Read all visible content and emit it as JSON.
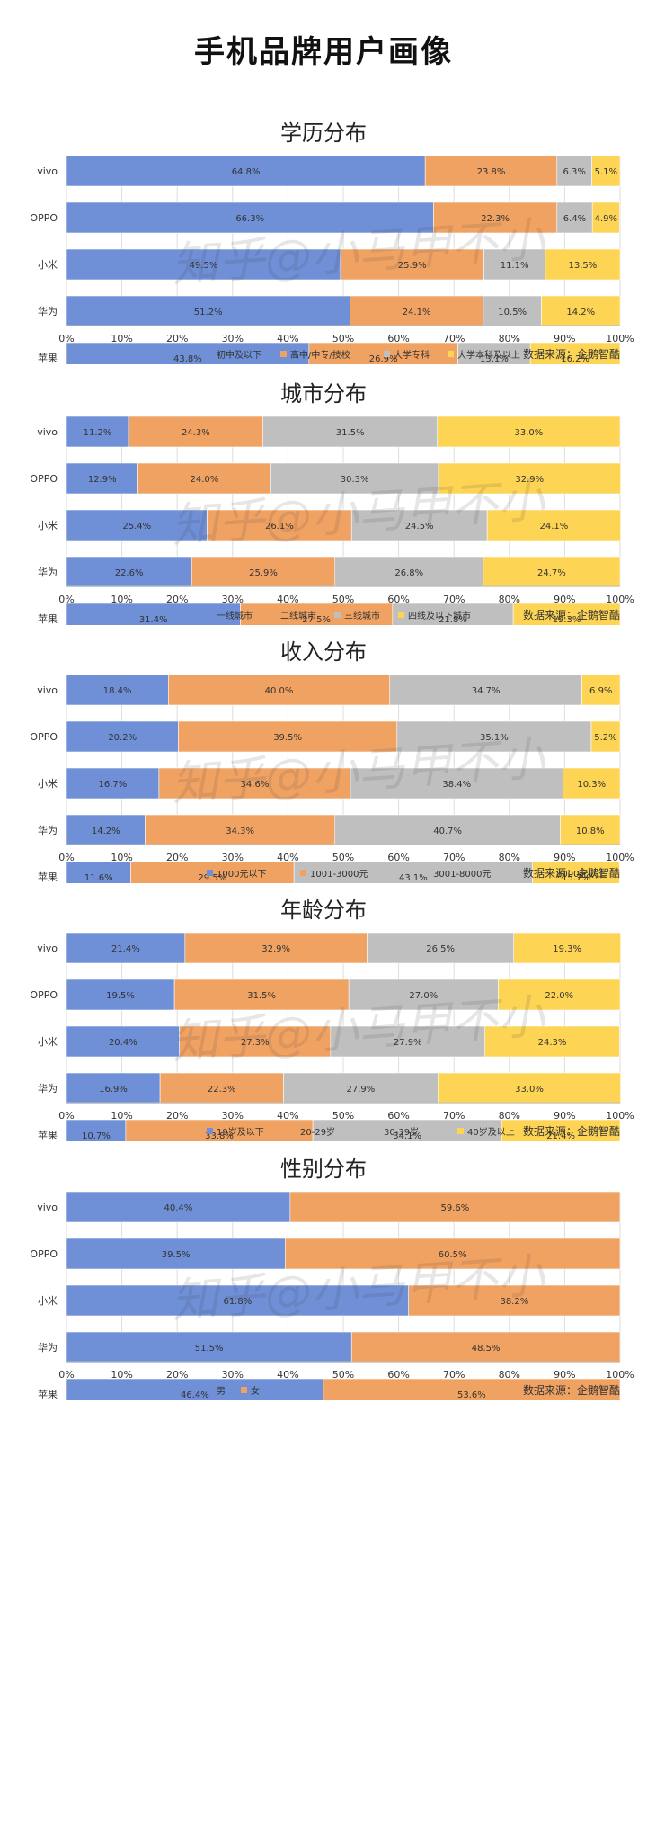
{
  "page": {
    "title": "手机品牌用户画像",
    "watermark": "知乎@小马甲不小"
  },
  "colors": {
    "blue": "#6f8fd6",
    "orange": "#f0a262",
    "gray": "#bfbfbf",
    "yellow": "#fdd454"
  },
  "chart_data": [
    {
      "type": "bar",
      "orientation": "horizontal",
      "stacked": true,
      "title": "学历分布",
      "categories": [
        "vivo",
        "OPPO",
        "小米",
        "华为",
        "苹果"
      ],
      "series": [
        {
          "name": "初中及以下",
          "color": "#6f8fd6",
          "values": [
            64.8,
            66.3,
            49.5,
            51.2,
            43.8
          ]
        },
        {
          "name": "高中/中专/技校",
          "color": "#f0a262",
          "values": [
            23.8,
            22.3,
            25.9,
            24.1,
            26.9
          ]
        },
        {
          "name": "大学专科",
          "color": "#bfbfbf",
          "values": [
            6.3,
            6.4,
            11.1,
            10.5,
            13.1
          ]
        },
        {
          "name": "大学本科及以上",
          "color": "#fdd454",
          "values": [
            5.1,
            4.9,
            13.5,
            14.2,
            16.2
          ]
        }
      ],
      "xlim": [
        0,
        100
      ],
      "xticks": [
        "0%",
        "10%",
        "20%",
        "30%",
        "40%",
        "50%",
        "60%",
        "70%",
        "80%",
        "90%",
        "100%"
      ],
      "source": "数据来源：企鹅智酷",
      "legend_position": "bottom",
      "grid": true
    },
    {
      "type": "bar",
      "orientation": "horizontal",
      "stacked": true,
      "title": "城市分布",
      "categories": [
        "vivo",
        "OPPO",
        "小米",
        "华为",
        "苹果"
      ],
      "series": [
        {
          "name": "一线城市",
          "color": "#6f8fd6",
          "values": [
            11.2,
            12.9,
            25.4,
            22.6,
            31.4
          ]
        },
        {
          "name": "二线城市",
          "color": "#f0a262",
          "values": [
            24.3,
            24.0,
            26.1,
            25.9,
            27.5
          ]
        },
        {
          "name": "三线城市",
          "color": "#bfbfbf",
          "values": [
            31.5,
            30.3,
            24.5,
            26.8,
            21.8
          ]
        },
        {
          "name": "四线及以下城市",
          "color": "#fdd454",
          "values": [
            33.0,
            32.9,
            24.1,
            24.7,
            19.3
          ]
        }
      ],
      "xlim": [
        0,
        100
      ],
      "xticks": [
        "0%",
        "10%",
        "20%",
        "30%",
        "40%",
        "50%",
        "60%",
        "70%",
        "80%",
        "90%",
        "100%"
      ],
      "source": "数据来源：企鹅智酷",
      "legend_position": "bottom",
      "grid": true
    },
    {
      "type": "bar",
      "orientation": "horizontal",
      "stacked": true,
      "title": "收入分布",
      "categories": [
        "vivo",
        "OPPO",
        "小米",
        "华为",
        "苹果"
      ],
      "series": [
        {
          "name": "1000元以下",
          "color": "#6f8fd6",
          "values": [
            18.4,
            20.2,
            16.7,
            14.2,
            11.6
          ]
        },
        {
          "name": "1001-3000元",
          "color": "#f0a262",
          "values": [
            40.0,
            39.5,
            34.6,
            34.3,
            29.5
          ]
        },
        {
          "name": "3001-8000元",
          "color": "#bfbfbf",
          "values": [
            34.7,
            35.1,
            38.4,
            40.7,
            43.1
          ]
        },
        {
          "name": "8000元以上",
          "color": "#fdd454",
          "values": [
            6.9,
            5.2,
            10.3,
            10.8,
            15.7
          ]
        }
      ],
      "xlim": [
        0,
        100
      ],
      "xticks": [
        "0%",
        "10%",
        "20%",
        "30%",
        "40%",
        "50%",
        "60%",
        "70%",
        "80%",
        "90%",
        "100%"
      ],
      "source": "数据来源：企鹅智酷",
      "legend_position": "bottom",
      "grid": true
    },
    {
      "type": "bar",
      "orientation": "horizontal",
      "stacked": true,
      "title": "年龄分布",
      "categories": [
        "vivo",
        "OPPO",
        "小米",
        "华为",
        "苹果"
      ],
      "series": [
        {
          "name": "19岁及以下",
          "color": "#6f8fd6",
          "values": [
            21.4,
            19.5,
            20.4,
            16.9,
            10.7
          ]
        },
        {
          "name": "20-29岁",
          "color": "#f0a262",
          "values": [
            32.9,
            31.5,
            27.3,
            22.3,
            33.8
          ]
        },
        {
          "name": "30-39岁",
          "color": "#bfbfbf",
          "values": [
            26.5,
            27.0,
            27.9,
            27.9,
            34.1
          ]
        },
        {
          "name": "40岁及以上",
          "color": "#fdd454",
          "values": [
            19.3,
            22.0,
            24.3,
            33.0,
            21.4
          ]
        }
      ],
      "xlim": [
        0,
        100
      ],
      "xticks": [
        "0%",
        "10%",
        "20%",
        "30%",
        "40%",
        "50%",
        "60%",
        "70%",
        "80%",
        "90%",
        "100%"
      ],
      "source": "数据来源：企鹅智酷",
      "legend_position": "bottom",
      "grid": true
    },
    {
      "type": "bar",
      "orientation": "horizontal",
      "stacked": true,
      "title": "性别分布",
      "categories": [
        "vivo",
        "OPPO",
        "小米",
        "华为",
        "苹果"
      ],
      "series": [
        {
          "name": "男",
          "color": "#6f8fd6",
          "values": [
            40.4,
            39.5,
            61.8,
            51.5,
            46.4
          ]
        },
        {
          "name": "女",
          "color": "#f0a262",
          "values": [
            59.6,
            60.5,
            38.2,
            48.5,
            53.6
          ]
        }
      ],
      "xlim": [
        0,
        100
      ],
      "xticks": [
        "0%",
        "10%",
        "20%",
        "30%",
        "40%",
        "50%",
        "60%",
        "70%",
        "80%",
        "90%",
        "100%"
      ],
      "source": "数据来源：企鹅智酷",
      "legend_position": "bottom",
      "grid": true
    }
  ]
}
